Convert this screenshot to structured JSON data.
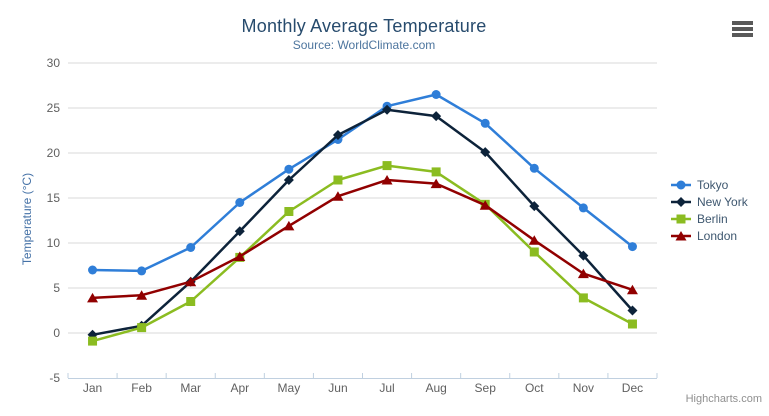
{
  "chart_data": {
    "type": "line",
    "title": "Monthly Average Temperature",
    "subtitle": "Source: WorldClimate.com",
    "categories": [
      "Jan",
      "Feb",
      "Mar",
      "Apr",
      "May",
      "Jun",
      "Jul",
      "Aug",
      "Sep",
      "Oct",
      "Nov",
      "Dec"
    ],
    "series": [
      {
        "name": "Tokyo",
        "color": "#2f7ed8",
        "marker": "circle",
        "values": [
          7.0,
          6.9,
          9.5,
          14.5,
          18.2,
          21.5,
          25.2,
          26.5,
          23.3,
          18.3,
          13.9,
          9.6
        ]
      },
      {
        "name": "New York",
        "color": "#0d233a",
        "marker": "diamond",
        "values": [
          -0.2,
          0.8,
          5.7,
          11.3,
          17.0,
          22.0,
          24.8,
          24.1,
          20.1,
          14.1,
          8.6,
          2.5
        ]
      },
      {
        "name": "Berlin",
        "color": "#8bbc21",
        "marker": "square",
        "values": [
          -0.9,
          0.6,
          3.5,
          8.4,
          13.5,
          17.0,
          18.6,
          17.9,
          14.3,
          9.0,
          3.9,
          1.0
        ]
      },
      {
        "name": "London",
        "color": "#910000",
        "marker": "triangle",
        "values": [
          3.9,
          4.2,
          5.7,
          8.5,
          11.9,
          15.2,
          17.0,
          16.6,
          14.2,
          10.3,
          6.6,
          4.8
        ]
      }
    ],
    "xlabel": "",
    "ylabel": "Temperature (°C)",
    "ylim": [
      -5,
      30
    ],
    "y_ticks": [
      -5,
      0,
      5,
      10,
      15,
      20,
      25,
      30
    ],
    "grid": "horizontal",
    "legend_position": "right",
    "colors": {
      "grid_line": "#d8d8d8",
      "axis_line": "#c0d0e0",
      "tick_label": "#606060",
      "title": "#274b6d",
      "subtitle": "#4d759e",
      "axis_title": "#4572a7",
      "legend_text": "#3e576f"
    }
  },
  "credits": {
    "label": "Highcharts.com"
  }
}
